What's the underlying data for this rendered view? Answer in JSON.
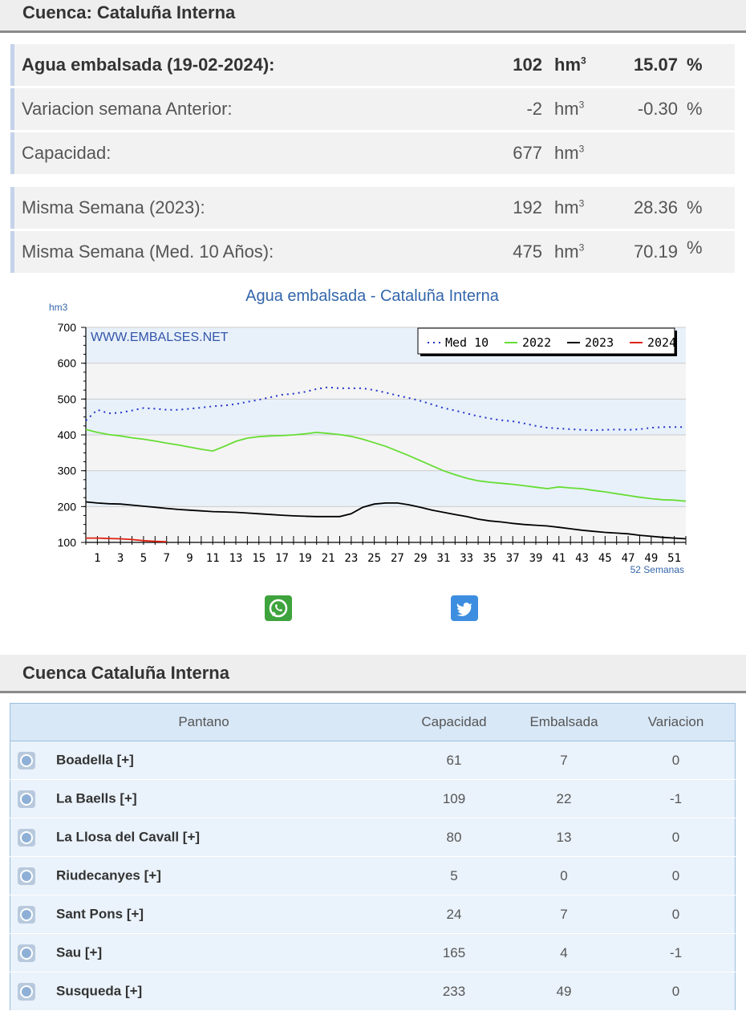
{
  "header": {
    "title": "Cuenca: Cataluña Interna"
  },
  "stats": [
    {
      "label": "Agua embalsada (19-02-2024):",
      "value": "102",
      "unit": "hm",
      "unit_sup": "3",
      "pct": "15.07",
      "pct_sign": "%"
    },
    {
      "label": "Variacion semana Anterior:",
      "value": "-2",
      "unit": "hm",
      "unit_sup": "3",
      "pct": "-0.30",
      "pct_sign": "%"
    },
    {
      "label": "Capacidad:",
      "value": "677",
      "unit": "hm",
      "unit_sup": "3",
      "pct": "",
      "pct_sign": ""
    },
    {
      "label": "Misma Semana (2023):",
      "value": "192",
      "unit": "hm",
      "unit_sup": "3",
      "pct": "28.36",
      "pct_sign": "%"
    },
    {
      "label": "Misma Semana (Med. 10 Años):",
      "value": "475",
      "unit": "hm",
      "unit_sup": "3",
      "pct": "70.19",
      "pct_sign": "%"
    }
  ],
  "chart_data": {
    "type": "line",
    "title": "Agua embalsada - Cataluña Interna",
    "ylabel": "hm3",
    "xlabel": "52 Semanas",
    "watermark": "WWW.EMBALSES.NET",
    "ylim": [
      100,
      700
    ],
    "yticks": [
      100,
      200,
      300,
      400,
      500,
      600,
      700
    ],
    "xlim": [
      0,
      52
    ],
    "xticks": [
      1,
      3,
      5,
      7,
      9,
      11,
      13,
      15,
      17,
      19,
      21,
      23,
      25,
      27,
      29,
      31,
      33,
      35,
      37,
      39,
      41,
      43,
      45,
      47,
      49,
      51
    ],
    "legend_position": "top-right",
    "series": [
      {
        "name": "Med 10",
        "color": "#2233cc",
        "style": "dotted",
        "x": [
          0,
          1,
          2,
          3,
          4,
          5,
          6,
          7,
          8,
          9,
          10,
          11,
          12,
          13,
          14,
          15,
          16,
          17,
          18,
          19,
          20,
          21,
          22,
          23,
          24,
          25,
          26,
          27,
          28,
          29,
          30,
          31,
          32,
          33,
          34,
          35,
          36,
          37,
          38,
          39,
          40,
          41,
          42,
          43,
          44,
          45,
          46,
          47,
          48,
          49,
          50,
          51,
          52
        ],
        "values": [
          440,
          470,
          460,
          462,
          468,
          475,
          473,
          470,
          470,
          473,
          476,
          480,
          482,
          486,
          492,
          498,
          505,
          512,
          515,
          520,
          528,
          533,
          530,
          530,
          530,
          525,
          518,
          510,
          503,
          495,
          485,
          475,
          468,
          460,
          452,
          446,
          441,
          438,
          432,
          425,
          420,
          418,
          416,
          414,
          413,
          414,
          415,
          414,
          416,
          420,
          422,
          422,
          422
        ]
      },
      {
        "name": "2022",
        "color": "#66dd33",
        "style": "solid",
        "x": [
          0,
          1,
          2,
          3,
          4,
          5,
          6,
          7,
          8,
          9,
          10,
          11,
          12,
          13,
          14,
          15,
          16,
          17,
          18,
          19,
          20,
          21,
          22,
          23,
          24,
          25,
          26,
          27,
          28,
          29,
          30,
          31,
          32,
          33,
          34,
          35,
          36,
          37,
          38,
          39,
          40,
          41,
          42,
          43,
          44,
          45,
          46,
          47,
          48,
          49,
          50,
          51,
          52
        ],
        "values": [
          415,
          407,
          401,
          397,
          392,
          388,
          383,
          377,
          372,
          366,
          360,
          355,
          368,
          382,
          391,
          395,
          397,
          398,
          400,
          403,
          407,
          404,
          401,
          396,
          388,
          378,
          368,
          355,
          342,
          328,
          314,
          300,
          289,
          279,
          272,
          268,
          265,
          262,
          258,
          254,
          250,
          255,
          252,
          250,
          245,
          241,
          236,
          231,
          226,
          222,
          219,
          218,
          215
        ]
      },
      {
        "name": "2023",
        "color": "#000000",
        "style": "solid",
        "x": [
          0,
          1,
          2,
          3,
          4,
          5,
          6,
          7,
          8,
          9,
          10,
          11,
          12,
          13,
          14,
          15,
          16,
          17,
          18,
          19,
          20,
          21,
          22,
          23,
          24,
          25,
          26,
          27,
          28,
          29,
          30,
          31,
          32,
          33,
          34,
          35,
          36,
          37,
          38,
          39,
          40,
          41,
          42,
          43,
          44,
          45,
          46,
          47,
          48,
          49,
          50,
          51,
          52
        ],
        "values": [
          213,
          210,
          208,
          207,
          204,
          201,
          198,
          195,
          192,
          190,
          188,
          186,
          185,
          184,
          182,
          180,
          178,
          176,
          174,
          173,
          172,
          172,
          172,
          180,
          198,
          207,
          210,
          210,
          205,
          198,
          190,
          184,
          178,
          172,
          165,
          160,
          157,
          153,
          150,
          148,
          146,
          142,
          138,
          134,
          131,
          128,
          126,
          124,
          120,
          117,
          114,
          112,
          110
        ]
      },
      {
        "name": "2024",
        "color": "#dd2211",
        "style": "solid",
        "x": [
          0,
          1,
          2,
          3,
          4,
          5,
          6,
          7
        ],
        "values": [
          112,
          112,
          111,
          110,
          108,
          105,
          103,
          102
        ]
      }
    ]
  },
  "share": {
    "whatsapp": "whatsapp-icon",
    "twitter": "twitter-icon"
  },
  "section2": {
    "title": "Cuenca Cataluña Interna"
  },
  "table": {
    "columns": [
      "Pantano",
      "Capacidad",
      "Embalsada",
      "Variacion"
    ],
    "rows": [
      {
        "name": "Boadella [+]",
        "capacidad": "61",
        "embalsada": "7",
        "variacion": "0"
      },
      {
        "name": "La Baells [+]",
        "capacidad": "109",
        "embalsada": "22",
        "variacion": "-1"
      },
      {
        "name": "La Llosa del Cavall [+]",
        "capacidad": "80",
        "embalsada": "13",
        "variacion": "0"
      },
      {
        "name": "Riudecanyes [+]",
        "capacidad": "5",
        "embalsada": "0",
        "variacion": "0"
      },
      {
        "name": "Sant Pons [+]",
        "capacidad": "24",
        "embalsada": "7",
        "variacion": "0"
      },
      {
        "name": "Sau [+]",
        "capacidad": "165",
        "embalsada": "4",
        "variacion": "-1"
      },
      {
        "name": "Susqueda [+]",
        "capacidad": "233",
        "embalsada": "49",
        "variacion": "0"
      }
    ]
  }
}
